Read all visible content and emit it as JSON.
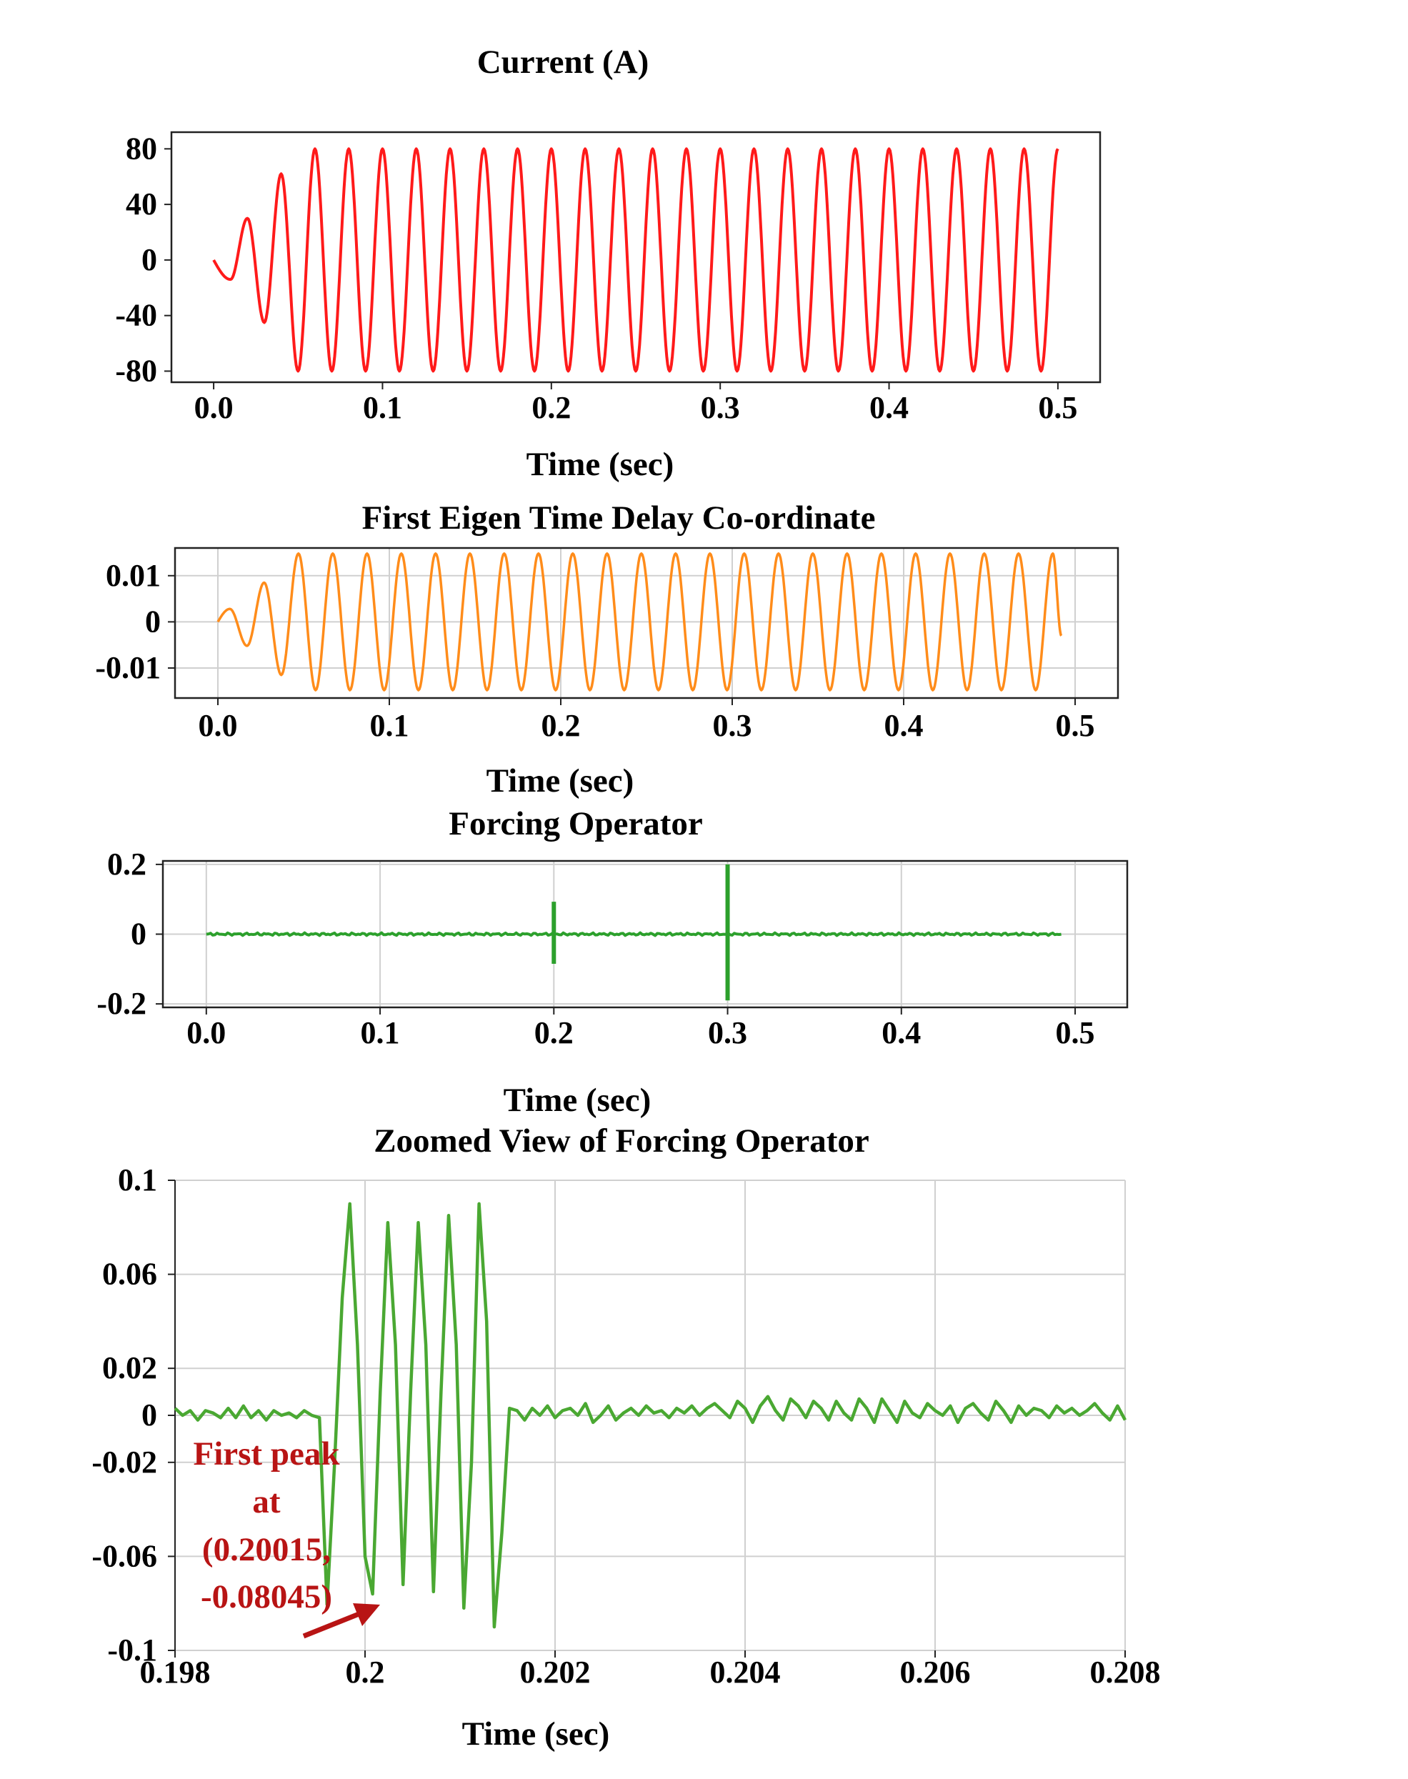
{
  "chart_data": [
    {
      "id": "current",
      "type": "line",
      "title": "Current (A)",
      "xlabel": "Time (sec)",
      "ylabel": "",
      "xlim": [
        -0.025,
        0.525
      ],
      "ylim": [
        -88,
        92
      ],
      "xticks": [
        0.0,
        0.1,
        0.2,
        0.3,
        0.4,
        0.5
      ],
      "xtick_labels": [
        "0.0",
        "0.1",
        "0.2",
        "0.3",
        "0.4",
        "0.5"
      ],
      "yticks": [
        80,
        40,
        0,
        -40,
        -80
      ],
      "ytick_labels": [
        "80",
        "40",
        "0",
        "-40",
        "-80"
      ],
      "grid": false,
      "color": "#ff1a1a",
      "series": [
        {
          "name": "Current",
          "frequency_hz": 50,
          "steady_amplitude": 80,
          "x_range": [
            0.0,
            0.5
          ],
          "peaks": [
            {
              "t": 0.01,
              "v": -14
            },
            {
              "t": 0.02,
              "v": 30
            },
            {
              "t": 0.03,
              "v": -45
            },
            {
              "t": 0.04,
              "v": 62
            },
            {
              "t": 0.05,
              "v": -80
            },
            {
              "t": 0.06,
              "v": 80
            }
          ],
          "end_value": 72
        }
      ]
    },
    {
      "id": "eigen",
      "type": "line",
      "title": "First Eigen Time Delay Co-ordinate",
      "xlabel": "Time (sec)",
      "ylabel": "",
      "xlim": [
        -0.025,
        0.525
      ],
      "ylim": [
        -0.0165,
        0.016
      ],
      "xticks": [
        0.0,
        0.1,
        0.2,
        0.3,
        0.4,
        0.5
      ],
      "xtick_labels": [
        "0.0",
        "0.1",
        "0.2",
        "0.3",
        "0.4",
        "0.5"
      ],
      "yticks": [
        0.01,
        0,
        -0.01
      ],
      "ytick_labels": [
        "0.01",
        "0",
        "-0.01"
      ],
      "grid": true,
      "color": "#ff8c1a",
      "series": [
        {
          "name": "First Eigen Time Delay Co-ordinate",
          "frequency_hz": 50,
          "steady_amplitude": 0.0148,
          "x_range": [
            0.0,
            0.492
          ],
          "peaks": [
            {
              "t": 0.007,
              "v": 0.0028
            },
            {
              "t": 0.017,
              "v": -0.0052
            },
            {
              "t": 0.027,
              "v": 0.0085
            },
            {
              "t": 0.037,
              "v": -0.0115
            },
            {
              "t": 0.047,
              "v": 0.0148
            },
            {
              "t": 0.057,
              "v": -0.0148
            }
          ],
          "end_value": -0.003
        }
      ]
    },
    {
      "id": "forcing",
      "type": "line",
      "title": "Forcing Operator",
      "xlabel": "Time (sec)",
      "ylabel": "",
      "xlim": [
        -0.025,
        0.53
      ],
      "ylim": [
        -0.21,
        0.21
      ],
      "xticks": [
        0.0,
        0.1,
        0.2,
        0.3,
        0.4,
        0.5
      ],
      "xtick_labels": [
        "0.0",
        "0.1",
        "0.2",
        "0.3",
        "0.4",
        "0.5"
      ],
      "yticks": [
        0.2,
        0,
        -0.2
      ],
      "ytick_labels": [
        "0.2",
        "0",
        "-0.2"
      ],
      "grid": true,
      "color": "#2ca02c",
      "series": [
        {
          "name": "Forcing Operator",
          "x_range": [
            0.0,
            0.492
          ],
          "noise_amplitude": 0.004,
          "spikes": [
            {
              "t": 0.2,
              "max": 0.093,
              "min": -0.085
            },
            {
              "t": 0.3,
              "max": 0.2,
              "min": -0.19
            }
          ]
        }
      ]
    },
    {
      "id": "zoom",
      "type": "line",
      "title": "Zoomed View of Forcing Operator",
      "xlabel": "Time (sec)",
      "ylabel": "",
      "xlim": [
        0.1984,
        0.2084
      ],
      "ylim": [
        -0.1,
        0.1
      ],
      "xticks": [
        0.1984,
        0.2004,
        0.2024,
        0.2044,
        0.2064,
        0.2084
      ],
      "xtick_labels": [
        "0.198",
        "0.2",
        "0.202",
        "0.204",
        "0.206",
        "0.208"
      ],
      "yticks": [
        0.1,
        0.06,
        0.02,
        0,
        -0.02,
        -0.06,
        -0.1
      ],
      "ytick_labels": [
        "0.1",
        "0.06",
        "0.02",
        "0",
        "-0.02",
        "-0.06",
        "-0.1"
      ],
      "grid": true,
      "color": "#4aa832",
      "series": [
        {
          "name": "Zoomed Forcing Operator",
          "x": [
            0.1984,
            0.19848,
            0.19856,
            0.19864,
            0.19872,
            0.1988,
            0.19888,
            0.19896,
            0.19904,
            0.19912,
            0.1992,
            0.19928,
            0.19936,
            0.19944,
            0.19952,
            0.1996,
            0.19968,
            0.19976,
            0.19984,
            0.19992,
            0.2,
            0.20008,
            0.20016,
            0.20024,
            0.20032,
            0.2004,
            0.20048,
            0.20056,
            0.20064,
            0.20072,
            0.2008,
            0.20088,
            0.20096,
            0.20104,
            0.20112,
            0.2012,
            0.20128,
            0.20136,
            0.20144,
            0.20152,
            0.2016,
            0.20168,
            0.20176,
            0.20184,
            0.20192,
            0.202,
            0.20208,
            0.20216,
            0.20224,
            0.20232,
            0.2024,
            0.20248,
            0.20256,
            0.20264,
            0.20272,
            0.2028,
            0.20288,
            0.20296,
            0.20304,
            0.20312,
            0.2032,
            0.20328,
            0.20336,
            0.20344,
            0.20352,
            0.2036,
            0.20368,
            0.20376,
            0.20384,
            0.20392,
            0.204,
            0.20408,
            0.20416,
            0.20424,
            0.20432,
            0.2044,
            0.20448,
            0.20456,
            0.20464,
            0.20472,
            0.2048,
            0.20488,
            0.20496,
            0.20504,
            0.20512,
            0.2052,
            0.20528,
            0.20536,
            0.20544,
            0.20552,
            0.2056,
            0.20568,
            0.20576,
            0.20584,
            0.20592,
            0.206,
            0.20608,
            0.20616,
            0.20624,
            0.20632,
            0.2064,
            0.20648,
            0.20656,
            0.20664,
            0.20672,
            0.2068,
            0.20688,
            0.20696,
            0.20704,
            0.20712,
            0.2072,
            0.20728,
            0.20736,
            0.20744,
            0.20752,
            0.2076,
            0.20768,
            0.20776,
            0.20784,
            0.20792,
            0.208,
            0.20808,
            0.20816,
            0.20824,
            0.20832,
            0.2084
          ],
          "y": [
            0.003,
            0.0,
            0.002,
            -0.002,
            0.002,
            0.001,
            -0.001,
            0.003,
            -0.001,
            0.004,
            -0.001,
            0.002,
            -0.002,
            0.002,
            0.0,
            0.001,
            -0.001,
            0.002,
            0.0,
            -0.001,
            -0.0805,
            -0.02,
            0.05,
            0.09,
            0.03,
            -0.06,
            -0.076,
            0.01,
            0.082,
            0.03,
            -0.072,
            0.01,
            0.082,
            0.03,
            -0.075,
            0.01,
            0.085,
            0.03,
            -0.082,
            -0.02,
            0.09,
            0.04,
            -0.09,
            -0.05,
            0.003,
            0.002,
            -0.002,
            0.003,
            0.0,
            0.004,
            -0.001,
            0.002,
            0.003,
            0.0,
            0.005,
            -0.003,
            0.0,
            0.004,
            -0.002,
            0.001,
            0.003,
            0.0,
            0.004,
            0.001,
            0.002,
            -0.001,
            0.003,
            0.001,
            0.004,
            0.0,
            0.003,
            0.005,
            0.002,
            -0.001,
            0.006,
            0.003,
            -0.003,
            0.004,
            0.008,
            0.002,
            -0.002,
            0.007,
            0.004,
            -0.001,
            0.006,
            0.003,
            -0.002,
            0.006,
            0.001,
            -0.002,
            0.007,
            0.003,
            -0.003,
            0.007,
            0.002,
            -0.003,
            0.006,
            0.001,
            -0.001,
            0.005,
            0.002,
            0.0,
            0.004,
            -0.003,
            0.003,
            0.005,
            0.001,
            -0.002,
            0.006,
            0.002,
            -0.003,
            0.004,
            0.0,
            0.003,
            0.002,
            -0.001,
            0.004,
            0.001,
            0.003,
            0.0,
            0.002,
            0.005,
            0.001,
            -0.002,
            0.004,
            -0.002
          ]
        }
      ],
      "annotation": {
        "lines": [
          "First peak",
          "at",
          "(0.20015,",
          "-0.08045)"
        ],
        "point": {
          "x": 0.20015,
          "y": -0.08045
        },
        "color": "#b81414"
      }
    }
  ]
}
